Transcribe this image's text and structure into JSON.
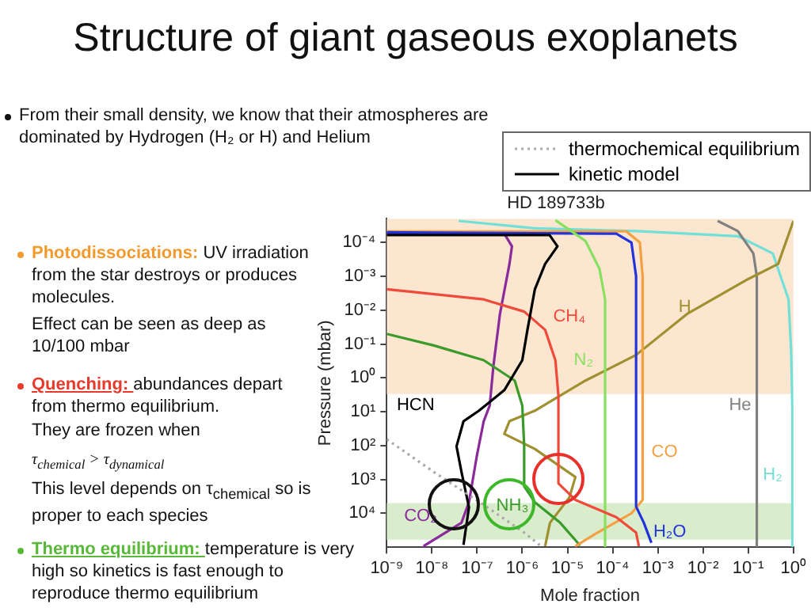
{
  "chart_data": {
    "type": "line",
    "title": "Structure of giant gaseous exoplanets",
    "subtitle": "HD 189733b",
    "xlabel": "Mole fraction",
    "ylabel": "Pressure (mbar)",
    "log": "xy",
    "legend": "top right",
    "marker": "none",
    "xlim": [
      1e-09,
      1
    ],
    "xticks": [
      {
        "value": 1e-09,
        "label": "10⁻⁹"
      },
      {
        "value": 1e-08,
        "label": "10⁻⁸"
      },
      {
        "value": 1e-07,
        "label": "10⁻⁷"
      },
      {
        "value": 1e-06,
        "label": "10⁻⁶"
      },
      {
        "value": 1e-05,
        "label": "10⁻⁵"
      },
      {
        "value": 0.0001,
        "label": "10⁻⁴"
      },
      {
        "value": 0.001,
        "label": "10⁻³"
      },
      {
        "value": 0.01,
        "label": "10⁻²"
      },
      {
        "value": 0.1,
        "label": "10⁻¹"
      },
      {
        "value": 1,
        "label": "10⁰"
      }
    ],
    "ylim": [
      100000,
      2e-05
    ],
    "yticks": [
      {
        "value": 0.0001,
        "label": "10⁻⁴"
      },
      {
        "value": 0.001,
        "label": "10⁻³"
      },
      {
        "value": 0.01,
        "label": "10⁻²"
      },
      {
        "value": 0.1,
        "label": "10⁻¹"
      },
      {
        "value": 1,
        "label": "10⁰"
      },
      {
        "value": 10,
        "label": "10¹"
      },
      {
        "value": 100,
        "label": "10²"
      },
      {
        "value": 1000,
        "label": "10³"
      },
      {
        "value": 10000,
        "label": "10⁴"
      }
    ],
    "bands": [
      {
        "axis": "y",
        "from": 2e-05,
        "to": 3,
        "color": "#fbe2c8"
      },
      {
        "axis": "y",
        "from": 5000,
        "to": 60000,
        "color": "#d2eac4"
      }
    ],
    "series": [
      {
        "name": "thermochemical equilibrium",
        "color": "#aaaaaa",
        "line_style": "dotted",
        "x": [
          1e-09,
          1.1e-08,
          1.4e-07,
          1.1e-06,
          2.5e-06
        ],
        "values": [
          65,
          600,
          5600,
          37000,
          89000
        ]
      },
      {
        "name": "kinetic model",
        "color": "#000000",
        "x": [
          1e-09,
          4e-06,
          6e-06,
          3.2e-06,
          1.9e-06,
          1.3e-06,
          1e-06,
          4e-07,
          1.1e-07,
          5e-08,
          3.5e-08,
          4.5e-08,
          6.6e-08,
          5e-08
        ],
        "values": [
          6e-05,
          6e-05,
          0.00013,
          0.00043,
          0.0024,
          0.038,
          0.3,
          2.3,
          9.3,
          19,
          105,
          590,
          6600,
          85000
        ]
      },
      {
        "color": "#f04a3a",
        "x": [
          1e-09,
          1.4e-07,
          1.1e-06,
          3.2e-06,
          5.4e-06,
          6.3e-06,
          6.3e-06,
          1.5e-05,
          0.00012,
          0.00033,
          0.00038
        ],
        "values": [
          0.0024,
          0.0048,
          0.011,
          0.038,
          0.3,
          3.3,
          1300,
          4000,
          13000,
          37000,
          93000
        ]
      },
      {
        "color": "#88e060",
        "x": [
          5.4e-06,
          2.5e-05,
          5.1e-05,
          6.8e-05,
          6.8e-05
        ],
        "values": [
          2.2e-05,
          9e-05,
          0.0006,
          0.0048,
          93000
        ]
      },
      {
        "color": "#2233dd",
        "x": [
          1e-09,
          0.00012,
          0.00026,
          0.00033,
          0.00033,
          0.00049,
          0.00072
        ],
        "values": [
          5e-05,
          5.5e-05,
          0.0001,
          0.001,
          6300,
          19000,
          74000
        ]
      },
      {
        "color": "#f5a040",
        "x": [
          1e-09,
          0.0002,
          0.0004,
          0.00046,
          0.00046,
          0.00026,
          4.2e-05,
          1.5e-05
        ],
        "values": [
          4.7e-05,
          4.7e-05,
          0.0001,
          0.001,
          4000,
          10000,
          40000,
          93000
        ]
      },
      {
        "color": "#3a9a2a",
        "x": [
          1e-09,
          1.1e-08,
          1.4e-07,
          6.8e-07,
          1e-06,
          1.1e-06,
          1.1e-06,
          1.9e-06,
          6.9e-06,
          1.9e-05
        ],
        "values": [
          0.05,
          0.11,
          0.3,
          1.2,
          6.6,
          100,
          1600,
          4700,
          19000,
          89000
        ]
      },
      {
        "color": "#8b2a9a",
        "x": [
          1e-09,
          4e-07,
          5.9e-07,
          5.2e-07,
          3.2e-07,
          2.3e-07,
          1.9e-07,
          1.4e-07,
          9.8e-08,
          6.6e-08,
          4.5e-08,
          6.5e-09
        ],
        "values": [
          5.5e-05,
          5.5e-05,
          0.00013,
          0.00043,
          0.013,
          0.43,
          6.6,
          19,
          210,
          4700,
          19000,
          93000
        ]
      },
      {
        "color": "#a09030",
        "x": [
          1,
          0.46,
          0.1,
          0.0044,
          0.00033,
          2.5e-05,
          1.9e-06,
          5.2e-07,
          4e-07,
          1.9e-06,
          1.5e-05,
          1.1e-05,
          4.1e-06,
          3.2e-06
        ],
        "values": [
          2.3e-05,
          0.00043,
          0.0012,
          0.013,
          0.21,
          1.2,
          9.3,
          19,
          45,
          126,
          850,
          3400,
          19000,
          93000
        ]
      },
      {
        "color": "#808080",
        "x": [
          0.021,
          0.059,
          0.13,
          0.155,
          0.155
        ],
        "values": [
          2.3e-05,
          4.6e-05,
          0.00021,
          0.001,
          93000
        ]
      },
      {
        "color": "#70e0d8",
        "x": [
          3.9e-08,
          1.9e-06,
          0.00033,
          0.059,
          0.35,
          0.78,
          0.89,
          0.955,
          0.955
        ],
        "values": [
          2.3e-05,
          3.8e-05,
          4.6e-05,
          6.5e-05,
          0.00021,
          0.0048,
          0.15,
          10,
          93000
        ]
      }
    ],
    "annotations": [
      "From their small density, we know that their atmospheres are dominated by Hydrogen (H₂ or H) and Helium",
      "Photodissociations:",
      "UV irradiation from the star destroys or produces molecules.",
      "Effect can be seen as deep as 10/100 mbar",
      "Quenching:",
      "abundances depart from thermo equilibrium.",
      "They are frozen when",
      "τ$_{chemical}$ > τ$_{dynamical}$",
      "This level depends on τ$_{chemical}$ so is proper to each species",
      "Thermo equilibrium:",
      "temperature is very high so kinetics is fast enough to reproduce thermo equilibrium",
      "HCN",
      "CH₄",
      "N₂",
      "H₂O",
      "CO",
      "NH₃",
      "CO₂",
      "H",
      "He",
      "H₂"
    ]
  }
}
